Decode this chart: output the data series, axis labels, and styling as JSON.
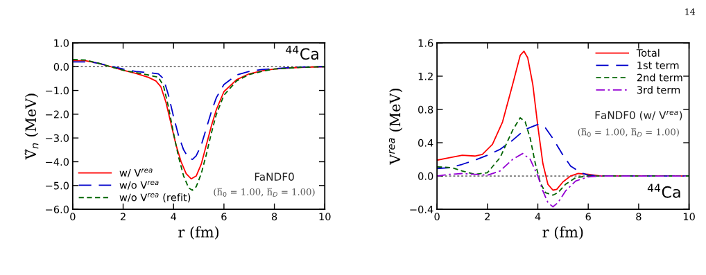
{
  "chart_data": [
    {
      "type": "line",
      "xlabel": "r (fm)",
      "ylabel": "Ṽ$_{n}$ (MeV)",
      "xlim": [
        0,
        10
      ],
      "xticks": [
        0,
        2,
        4,
        6,
        8,
        10
      ],
      "ylim": [
        -6,
        1
      ],
      "yticks": [
        {
          "value": -6,
          "label": "−6.0"
        },
        {
          "value": -5,
          "label": "−5.0"
        },
        {
          "value": -4,
          "label": "−4.0"
        },
        {
          "value": -3,
          "label": "−3.0"
        },
        {
          "value": -2,
          "label": "−2.0"
        },
        {
          "value": -1,
          "label": "−1.0"
        },
        {
          "value": 0,
          "label": "0.0"
        },
        {
          "value": 1,
          "label": "1.0"
        }
      ],
      "grid": false,
      "legend": "bottom left",
      "ref_lines": [
        {
          "axis": "y",
          "value": 0,
          "color": "#000000",
          "line_style": "dashed"
        }
      ],
      "annotations": [
        "$^{44}$Ca",
        "FaNDF0",
        "(h̃$_{0}$ = 1.00, h̃$_{D}$ = 1.00)"
      ],
      "series": [
        {
          "name": "w/ V$^{rea}$",
          "color": "#ff0000",
          "line_style": "solid",
          "x": [
            0,
            0.5,
            1,
            1.5,
            2,
            2.5,
            3,
            3.3,
            3.5,
            3.7,
            3.9,
            4.1,
            4.3,
            4.5,
            4.7,
            4.9,
            5.1,
            5.3,
            5.5,
            5.7,
            6,
            6.5,
            7,
            7.5,
            8,
            9,
            10
          ],
          "values": [
            0.25,
            0.25,
            0.15,
            0.0,
            -0.15,
            -0.28,
            -0.45,
            -0.6,
            -0.85,
            -1.5,
            -2.4,
            -3.3,
            -4.0,
            -4.5,
            -4.72,
            -4.6,
            -4.1,
            -3.3,
            -2.5,
            -1.8,
            -1.05,
            -0.55,
            -0.3,
            -0.18,
            -0.1,
            -0.03,
            0
          ]
        },
        {
          "name": "w/o V$^{rea}$",
          "color": "#0000cc",
          "line_style": "longdash",
          "x": [
            0,
            0.6,
            1,
            1.5,
            2,
            2.5,
            3,
            3.4,
            3.6,
            3.8,
            4.0,
            4.2,
            4.4,
            4.6,
            4.75,
            4.9,
            5.1,
            5.3,
            5.5,
            5.7,
            6,
            6.5,
            7,
            7.5,
            8,
            9,
            10
          ],
          "values": [
            0.2,
            0.2,
            0.15,
            0.02,
            -0.1,
            -0.2,
            -0.25,
            -0.3,
            -0.5,
            -1.2,
            -2.1,
            -2.9,
            -3.5,
            -3.85,
            -3.9,
            -3.75,
            -3.3,
            -2.6,
            -1.9,
            -1.3,
            -0.75,
            -0.35,
            -0.2,
            -0.12,
            -0.08,
            -0.02,
            0
          ]
        },
        {
          "name": "w/o V$^{rea}$ (refit)",
          "color": "#006400",
          "line_style": "dashed",
          "x": [
            0,
            0.5,
            1,
            1.5,
            2,
            2.5,
            3,
            3.4,
            3.6,
            3.8,
            4.0,
            4.2,
            4.4,
            4.6,
            4.75,
            4.9,
            5.1,
            5.3,
            5.5,
            5.7,
            6,
            6.5,
            7,
            7.5,
            8,
            9,
            10
          ],
          "values": [
            0.3,
            0.28,
            0.15,
            0.0,
            -0.15,
            -0.25,
            -0.35,
            -0.45,
            -0.8,
            -1.7,
            -2.8,
            -3.8,
            -4.6,
            -5.1,
            -5.2,
            -5.05,
            -4.5,
            -3.7,
            -2.8,
            -2.0,
            -1.2,
            -0.6,
            -0.33,
            -0.2,
            -0.1,
            -0.03,
            0
          ]
        }
      ]
    },
    {
      "type": "line",
      "xlabel": "r (fm)",
      "ylabel": "V$^{rea}$ (MeV)",
      "xlim": [
        0,
        10
      ],
      "xticks": [
        0,
        2,
        4,
        6,
        8,
        10
      ],
      "ylim": [
        -0.4,
        1.6
      ],
      "yticks": [
        {
          "value": -0.4,
          "label": "−0.4"
        },
        {
          "value": 0,
          "label": "0.0"
        },
        {
          "value": 0.4,
          "label": "0.4"
        },
        {
          "value": 0.8,
          "label": "0.8"
        },
        {
          "value": 1.2,
          "label": "1.2"
        },
        {
          "value": 1.6,
          "label": "1.6"
        }
      ],
      "grid": false,
      "legend": "top right",
      "ref_lines": [
        {
          "axis": "y",
          "value": 0,
          "color": "#000000",
          "line_style": "dashed"
        }
      ],
      "annotations": [
        "$^{44}$Ca",
        "FaNDF0 (w/ V$^{rea}$)",
        "(h̃$_{0}$ = 1.00, h̃$_{D}$ = 1.00)",
        "14"
      ],
      "series": [
        {
          "name": "Total",
          "color": "#ff0000",
          "line_style": "solid",
          "x": [
            0,
            0.5,
            1,
            1.5,
            1.8,
            2.2,
            2.6,
            3.0,
            3.3,
            3.45,
            3.6,
            3.8,
            4.0,
            4.2,
            4.4,
            4.6,
            4.75,
            5.0,
            5.3,
            5.6,
            6.0,
            6.5,
            10
          ],
          "values": [
            0.19,
            0.22,
            0.25,
            0.24,
            0.26,
            0.38,
            0.65,
            1.1,
            1.45,
            1.5,
            1.42,
            1.1,
            0.6,
            0.15,
            -0.1,
            -0.17,
            -0.16,
            -0.07,
            0.0,
            0.03,
            0.02,
            0.0,
            0
          ]
        },
        {
          "name": "1st term",
          "color": "#0000cc",
          "line_style": "longdash",
          "x": [
            0,
            0.5,
            1,
            1.5,
            2,
            2.5,
            3,
            3.5,
            4,
            4.3,
            4.6,
            5,
            5.3,
            5.7,
            6,
            6.5,
            10
          ],
          "values": [
            0.09,
            0.1,
            0.14,
            0.19,
            0.25,
            0.32,
            0.43,
            0.56,
            0.62,
            0.58,
            0.45,
            0.25,
            0.12,
            0.04,
            0.01,
            0,
            0
          ]
        },
        {
          "name": "2nd term",
          "color": "#006400",
          "line_style": "dashed",
          "x": [
            0,
            0.6,
            1,
            1.5,
            2,
            2.5,
            3,
            3.3,
            3.5,
            3.7,
            3.9,
            4.1,
            4.3,
            4.6,
            4.8,
            5.1,
            5.5,
            6,
            10
          ],
          "values": [
            0.11,
            0.1,
            0.06,
            0.02,
            0.04,
            0.22,
            0.55,
            0.7,
            0.65,
            0.45,
            0.15,
            -0.08,
            -0.2,
            -0.23,
            -0.2,
            -0.1,
            -0.02,
            0,
            0
          ]
        },
        {
          "name": "3rd term",
          "color": "#9400d3",
          "line_style": "dashdot",
          "x": [
            0,
            0.5,
            1,
            1.5,
            2,
            2.5,
            3,
            3.4,
            3.7,
            4.0,
            4.2,
            4.4,
            4.6,
            4.8,
            5.1,
            5.5,
            6,
            6.5,
            10
          ],
          "values": [
            0.0,
            0.02,
            0.03,
            0.02,
            0.01,
            0.06,
            0.2,
            0.27,
            0.2,
            0.0,
            -0.18,
            -0.32,
            -0.37,
            -0.32,
            -0.18,
            -0.06,
            -0.01,
            0,
            0
          ]
        }
      ]
    }
  ]
}
